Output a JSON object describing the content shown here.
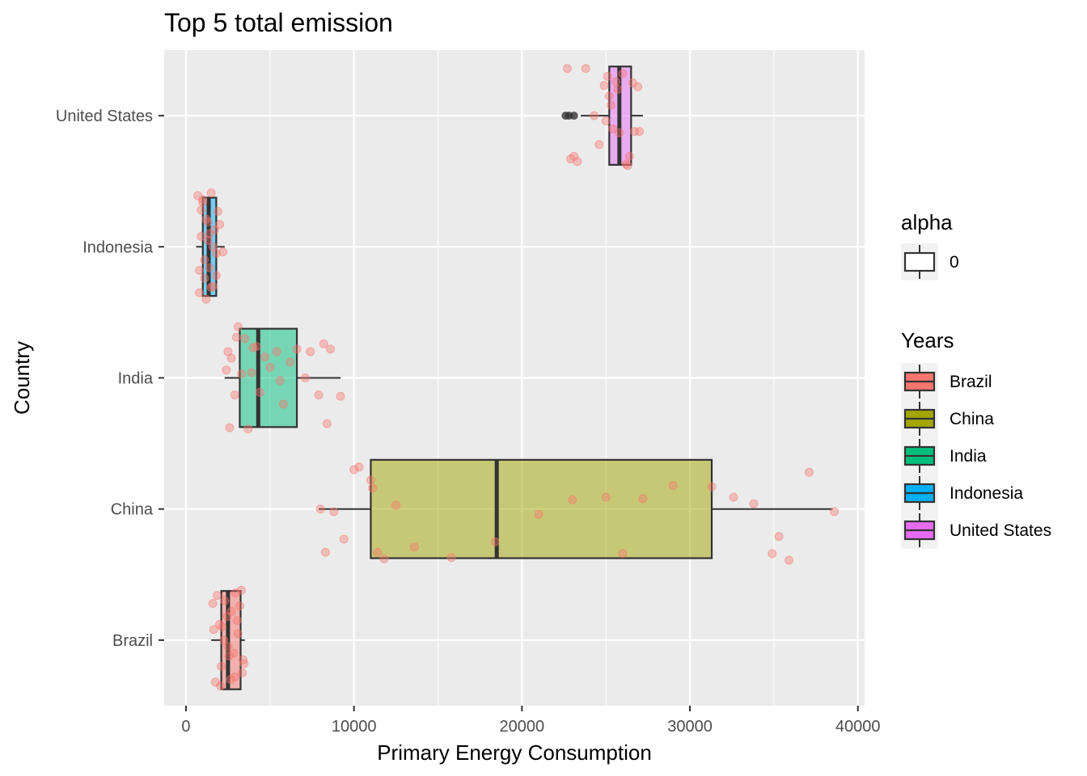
{
  "chart_data": {
    "type": "boxplot",
    "title": "Top 5 total emission",
    "xlabel": "Primary Energy Consumption",
    "ylabel": "Country",
    "xlim": [
      -1300,
      40400
    ],
    "x_ticks": [
      0,
      10000,
      20000,
      30000,
      40000
    ],
    "x_tick_labels": [
      "0",
      "10000",
      "20000",
      "30000",
      "40000"
    ],
    "categories": [
      "Brazil",
      "China",
      "India",
      "Indonesia",
      "United States"
    ],
    "grid": true,
    "legend_position": "right",
    "boxes": [
      {
        "name": "Brazil",
        "color": "#F8766D",
        "whisker_low": 1500,
        "q1": 2100,
        "median": 2500,
        "q3": 3250,
        "whisker_high": 3500,
        "outliers": []
      },
      {
        "name": "China",
        "color": "#A3A500",
        "whisker_low": 7900,
        "q1": 11000,
        "median": 18500,
        "q3": 31300,
        "whisker_high": 38500,
        "outliers": []
      },
      {
        "name": "India",
        "color": "#00BF7D",
        "whisker_low": 2300,
        "q1": 3200,
        "median": 4300,
        "q3": 6600,
        "whisker_high": 9200,
        "outliers": []
      },
      {
        "name": "Indonesia",
        "color": "#00B0F6",
        "whisker_low": 600,
        "q1": 1000,
        "median": 1350,
        "q3": 1800,
        "whisker_high": 2300,
        "outliers": []
      },
      {
        "name": "United States",
        "color": "#E76BF3",
        "whisker_low": 23500,
        "q1": 25200,
        "median": 25800,
        "q3": 26500,
        "whisker_high": 27200,
        "outliers": [
          22600,
          22800,
          23100
        ]
      }
    ],
    "jitter_points": {
      "color": "#F8766D",
      "series": [
        {
          "name": "Brazil",
          "x": [
            1600,
            1750,
            2000,
            2100,
            2300,
            2500,
            2700,
            2900,
            3100,
            3300,
            3400,
            1650,
            2050,
            2450,
            2850,
            3200,
            3350,
            1850,
            2250,
            2650,
            3050,
            3450,
            2150,
            2550,
            2950
          ],
          "y_jitter": [
            0.28,
            -0.32,
            0.12,
            -0.2,
            0.3,
            -0.05,
            0.22,
            -0.28,
            0.05,
            0.38,
            -0.15,
            0.08,
            -0.35,
            0.18,
            -0.1,
            0.26,
            -0.25,
            0.34,
            0.0,
            -0.3,
            0.15,
            -0.18,
            0.1,
            -0.12,
            0.36
          ]
        },
        {
          "name": "China",
          "x": [
            8000,
            8300,
            8800,
            9400,
            10000,
            10300,
            11000,
            11100,
            11400,
            11800,
            12500,
            13600,
            15800,
            18400,
            21000,
            23000,
            25000,
            26000,
            27200,
            29000,
            31300,
            32600,
            33800,
            34900,
            35300,
            35900,
            37100,
            38600
          ],
          "y_jitter": [
            0.0,
            -0.33,
            -0.02,
            -0.23,
            0.3,
            0.32,
            0.22,
            0.16,
            -0.33,
            -0.38,
            0.03,
            -0.29,
            -0.37,
            -0.25,
            -0.04,
            0.07,
            0.09,
            -0.34,
            0.08,
            0.18,
            0.17,
            0.09,
            0.04,
            -0.34,
            -0.21,
            -0.39,
            0.28,
            -0.02
          ]
        },
        {
          "name": "India",
          "x": [
            2400,
            2500,
            2600,
            2700,
            2900,
            3100,
            3300,
            3500,
            3700,
            4000,
            4400,
            4700,
            5000,
            5400,
            5800,
            6200,
            6600,
            7100,
            7400,
            7900,
            8200,
            8400,
            8600,
            9200,
            3000,
            4200,
            5600,
            3900
          ],
          "y_jitter": [
            0.06,
            0.2,
            -0.38,
            0.15,
            -0.13,
            0.39,
            0.03,
            0.3,
            -0.39,
            0.23,
            -0.11,
            0.16,
            0.08,
            0.2,
            -0.2,
            0.12,
            0.22,
            0.0,
            0.2,
            -0.13,
            0.26,
            -0.35,
            0.22,
            -0.14,
            0.31,
            0.24,
            -0.02,
            0.04
          ]
        },
        {
          "name": "Indonesia",
          "x": [
            700,
            800,
            900,
            1000,
            1100,
            1200,
            1300,
            1400,
            1500,
            1600,
            1700,
            1800,
            1900,
            2000,
            2200,
            800,
            1000,
            1200,
            1400,
            1600,
            1800,
            900,
            1100,
            1300,
            1500
          ],
          "y_jitter": [
            0.39,
            -0.35,
            0.08,
            0.36,
            -0.24,
            0.21,
            0.05,
            -0.16,
            0.41,
            -0.3,
            0.13,
            -0.05,
            0.27,
            0.17,
            -0.04,
            -0.18,
            0.34,
            -0.4,
            0.1,
            0.0,
            -0.22,
            0.28,
            -0.1,
            0.19,
            -0.31
          ]
        },
        {
          "name": "United States",
          "x": [
            22700,
            22900,
            23300,
            23800,
            24300,
            24900,
            25000,
            25200,
            25400,
            25600,
            25800,
            26000,
            26200,
            26400,
            26700,
            26900,
            27000,
            26600,
            25300,
            24600,
            23100,
            25100,
            26300,
            25700
          ],
          "y_jitter": [
            0.36,
            -0.33,
            -0.35,
            0.36,
            0.0,
            0.23,
            -0.04,
            0.15,
            -0.1,
            0.26,
            -0.13,
            0.32,
            -0.37,
            -0.31,
            -0.12,
            0.22,
            -0.12,
            0.25,
            0.08,
            -0.22,
            -0.31,
            0.3,
            -0.38,
            0.2
          ]
        }
      ]
    },
    "legends": [
      {
        "title": "alpha",
        "entries": [
          {
            "label": "0",
            "fill": "none"
          }
        ]
      },
      {
        "title": "Years",
        "entries": [
          {
            "label": "Brazil",
            "fill": "#F8766D"
          },
          {
            "label": "China",
            "fill": "#A3A500"
          },
          {
            "label": "India",
            "fill": "#00BF7D"
          },
          {
            "label": "Indonesia",
            "fill": "#00B0F6"
          },
          {
            "label": "United States",
            "fill": "#E76BF3"
          }
        ]
      }
    ]
  }
}
